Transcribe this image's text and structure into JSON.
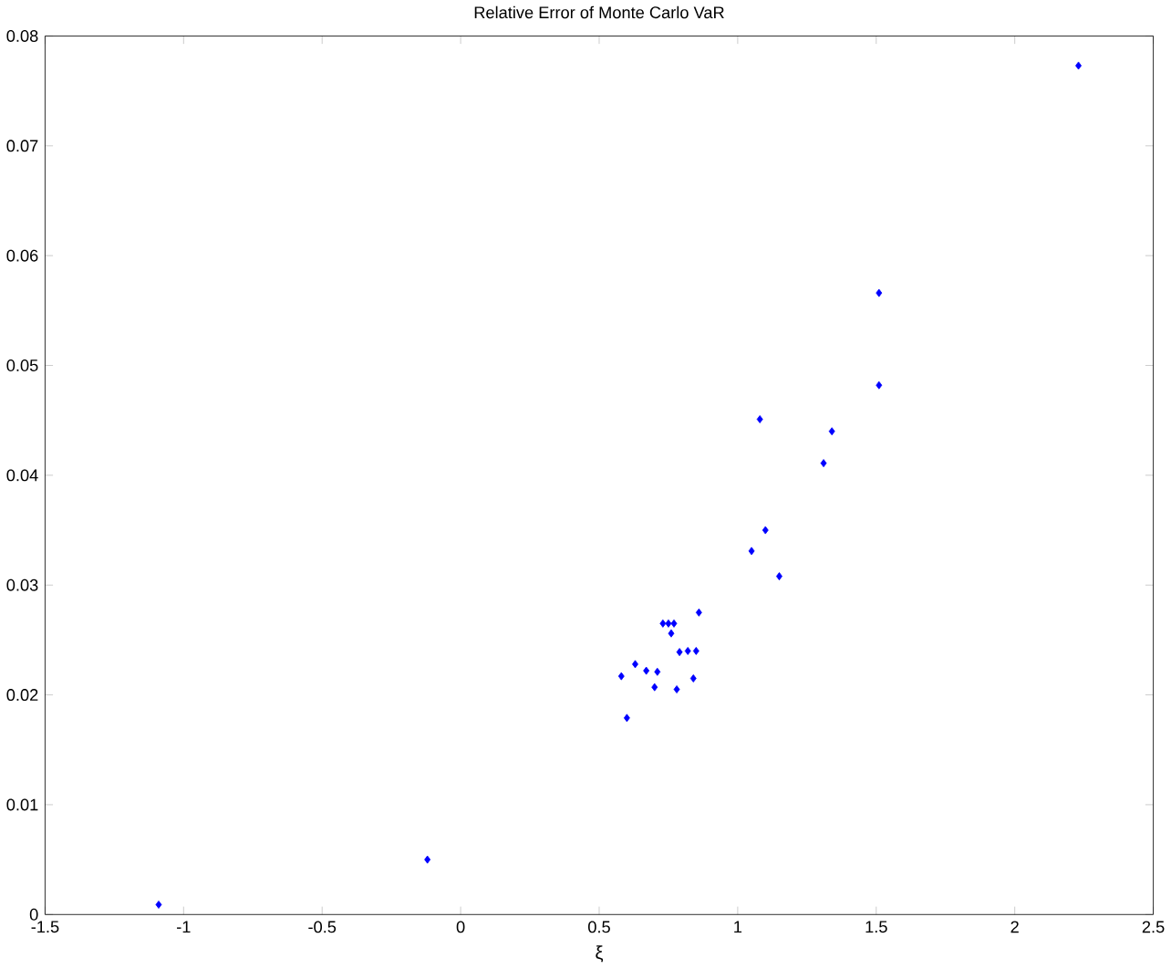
{
  "chart_data": {
    "type": "scatter",
    "title": "Relative Error of Monte Carlo VaR",
    "xlabel": "ξ",
    "x": [
      -1.09,
      -0.12,
      0.58,
      0.6,
      0.63,
      0.67,
      0.7,
      0.71,
      0.73,
      0.75,
      0.76,
      0.77,
      0.78,
      0.79,
      0.82,
      0.84,
      0.85,
      0.86,
      1.05,
      1.08,
      1.1,
      1.15,
      1.31,
      1.34,
      1.51,
      1.51,
      2.23
    ],
    "series": [
      {
        "color": "#0000ff",
        "values": [
          0.0009,
          0.005,
          0.0217,
          0.0179,
          0.0228,
          0.0222,
          0.0207,
          0.0221,
          0.0265,
          0.0265,
          0.0256,
          0.0265,
          0.0205,
          0.0239,
          0.024,
          0.0215,
          0.024,
          0.0275,
          0.0331,
          0.0451,
          0.035,
          0.0308,
          0.0411,
          0.044,
          0.0566,
          0.0482,
          0.0773
        ]
      }
    ],
    "xlim": [
      -1.5,
      2.5
    ],
    "ylim": [
      0,
      0.08
    ],
    "xticks": [
      -1.5,
      -1,
      -0.5,
      0,
      0.5,
      1,
      1.5,
      2,
      2.5
    ],
    "yticks": [
      0,
      0.01,
      0.02,
      0.03,
      0.04,
      0.05,
      0.06,
      0.07,
      0.08
    ],
    "marker": "diamond",
    "grid": false
  }
}
